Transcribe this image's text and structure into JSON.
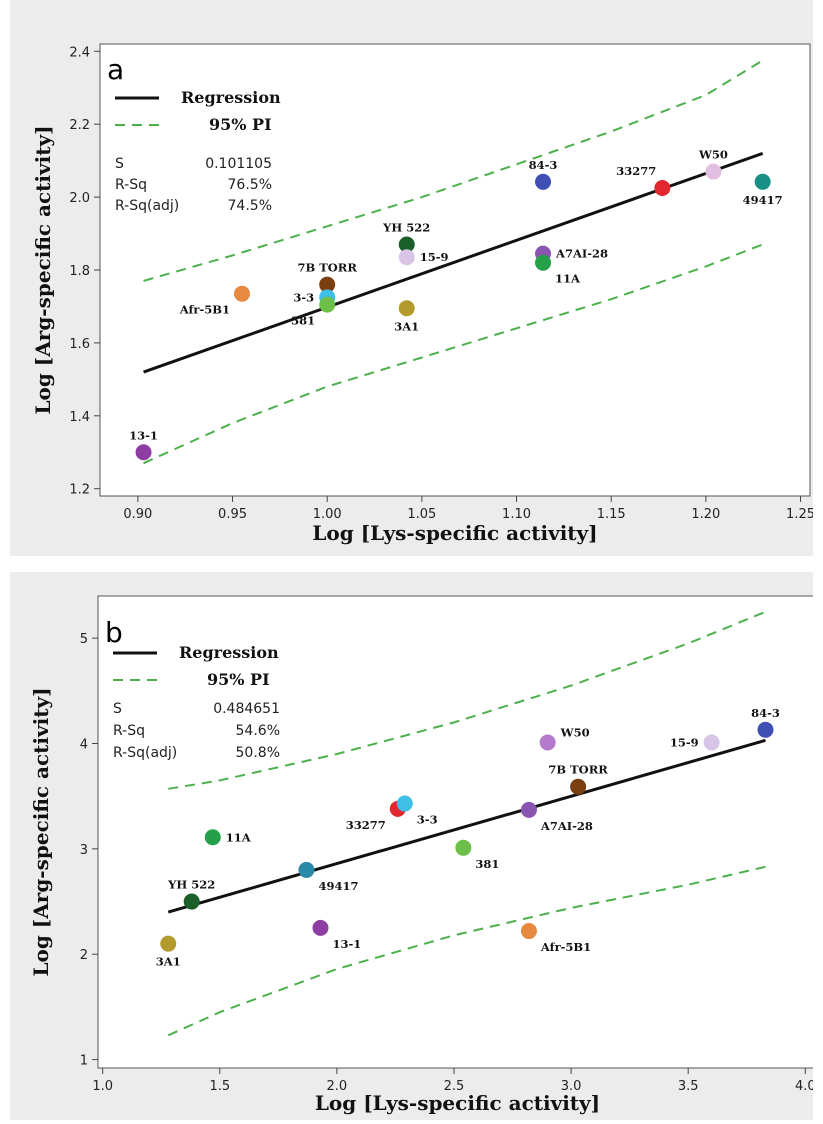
{
  "chart_data": [
    {
      "panel_label": "a",
      "type": "scatter",
      "xlabel": "Log [Lys-specific activity]",
      "ylabel": "Log [Arg-specific activity]",
      "xlim": [
        0.88,
        1.255
      ],
      "ylim": [
        1.18,
        2.42
      ],
      "x_ticks": [
        "0.90",
        "0.95",
        "1.00",
        "1.05",
        "1.10",
        "1.15",
        "1.20",
        "1.25"
      ],
      "y_ticks": [
        "1.2",
        "1.4",
        "1.6",
        "1.8",
        "2.0",
        "2.2",
        "2.4"
      ],
      "legend": {
        "regression_label": "Regression",
        "pi_label": "95% PI",
        "stats": [
          {
            "name": "S",
            "value": "0.101105"
          },
          {
            "name": "R-Sq",
            "value": "76.5%"
          },
          {
            "name": "R-Sq(adj)",
            "value": "74.5%"
          }
        ]
      },
      "regression_line": {
        "x": [
          0.903,
          1.23
        ],
        "y": [
          1.52,
          2.12
        ]
      },
      "pi_upper": {
        "x": [
          0.903,
          0.95,
          1.0,
          1.05,
          1.1,
          1.15,
          1.2,
          1.23
        ],
        "y": [
          1.77,
          1.84,
          1.92,
          2.0,
          2.09,
          2.18,
          2.28,
          2.375
        ]
      },
      "pi_lower": {
        "x": [
          0.903,
          0.95,
          1.0,
          1.05,
          1.1,
          1.15,
          1.2,
          1.23
        ],
        "y": [
          1.27,
          1.38,
          1.48,
          1.56,
          1.64,
          1.72,
          1.81,
          1.87
        ]
      },
      "points": [
        {
          "label": "13-1",
          "x": 0.903,
          "y": 1.3,
          "color": "#8e3ea3",
          "lpos": "above"
        },
        {
          "label": "Afr-5B1",
          "x": 0.955,
          "y": 1.735,
          "color": "#e88940",
          "lpos": "below-left"
        },
        {
          "label": "7B TORR",
          "x": 1.0,
          "y": 1.76,
          "color": "#7a3f10",
          "lpos": "above"
        },
        {
          "label": "3-3",
          "x": 1.0,
          "y": 1.725,
          "color": "#3fbfe8",
          "lpos": "left"
        },
        {
          "label": "381",
          "x": 1.0,
          "y": 1.705,
          "color": "#6cc04a",
          "lpos": "below-left"
        },
        {
          "label": "YH 522",
          "x": 1.042,
          "y": 1.87,
          "color": "#1a5e2a",
          "lpos": "above"
        },
        {
          "label": "15-9",
          "x": 1.042,
          "y": 1.835,
          "color": "#d8c4e6",
          "lpos": "right"
        },
        {
          "label": "3A1",
          "x": 1.042,
          "y": 1.695,
          "color": "#b39a2c",
          "lpos": "below"
        },
        {
          "label": "84-3",
          "x": 1.114,
          "y": 2.042,
          "color": "#3f4fb3",
          "lpos": "above"
        },
        {
          "label": "A7AI-28",
          "x": 1.114,
          "y": 1.845,
          "color": "#8a55b0",
          "lpos": "right"
        },
        {
          "label": "11A",
          "x": 1.114,
          "y": 1.82,
          "color": "#24a048",
          "lpos": "below-right"
        },
        {
          "label": "33277",
          "x": 1.177,
          "y": 2.025,
          "color": "#e0282e",
          "lpos": "above-left"
        },
        {
          "label": "W50",
          "x": 1.204,
          "y": 2.07,
          "color": "#e2bfe0",
          "lpos": "above"
        },
        {
          "label": "49417",
          "x": 1.23,
          "y": 2.042,
          "color": "#1a8f86",
          "lpos": "below"
        }
      ]
    },
    {
      "panel_label": "b",
      "type": "scatter",
      "xlabel": "Log [Lys-specific activity]",
      "ylabel": "Log [Arg-specific activity]",
      "xlim": [
        0.98,
        4.05
      ],
      "ylim": [
        0.92,
        5.4
      ],
      "x_ticks": [
        "1.0",
        "1.5",
        "2.0",
        "2.5",
        "3.0",
        "3.5",
        "4.0"
      ],
      "y_ticks": [
        "1",
        "2",
        "3",
        "4",
        "5"
      ],
      "legend": {
        "regression_label": "Regression",
        "pi_label": "95% PI",
        "stats": [
          {
            "name": "S",
            "value": "0.484651"
          },
          {
            "name": "R-Sq",
            "value": "54.6%"
          },
          {
            "name": "R-Sq(adj)",
            "value": "50.8%"
          }
        ]
      },
      "regression_line": {
        "x": [
          1.28,
          3.83
        ],
        "y": [
          2.4,
          4.03
        ]
      },
      "pi_upper": {
        "x": [
          1.28,
          1.5,
          2.0,
          2.5,
          3.0,
          3.5,
          3.83
        ],
        "y": [
          3.57,
          3.65,
          3.9,
          4.2,
          4.55,
          4.95,
          5.25
        ]
      },
      "pi_lower": {
        "x": [
          1.28,
          1.5,
          2.0,
          2.5,
          3.0,
          3.5,
          3.83
        ],
        "y": [
          1.23,
          1.45,
          1.86,
          2.18,
          2.44,
          2.66,
          2.83
        ]
      },
      "points": [
        {
          "label": "3A1",
          "x": 1.28,
          "y": 2.1,
          "color": "#b39a2c",
          "lpos": "below"
        },
        {
          "label": "YH 522",
          "x": 1.38,
          "y": 2.5,
          "color": "#1a5e2a",
          "lpos": "above"
        },
        {
          "label": "11A",
          "x": 1.47,
          "y": 3.11,
          "color": "#24a048",
          "lpos": "right"
        },
        {
          "label": "49417",
          "x": 1.87,
          "y": 2.8,
          "color": "#2a8aa8",
          "lpos": "below-right"
        },
        {
          "label": "13-1",
          "x": 1.93,
          "y": 2.25,
          "color": "#8e3ea3",
          "lpos": "below-right"
        },
        {
          "label": "33277",
          "x": 2.26,
          "y": 3.38,
          "color": "#e0282e",
          "lpos": "below-left"
        },
        {
          "label": "3-3",
          "x": 2.29,
          "y": 3.43,
          "color": "#3fbfe8",
          "lpos": "below-right"
        },
        {
          "label": "381",
          "x": 2.54,
          "y": 3.01,
          "color": "#6cc04a",
          "lpos": "below-right"
        },
        {
          "label": "A7AI-28",
          "x": 2.82,
          "y": 3.37,
          "color": "#8a55b0",
          "lpos": "below-right"
        },
        {
          "label": "Afr-5B1",
          "x": 2.82,
          "y": 2.22,
          "color": "#e88940",
          "lpos": "below-right"
        },
        {
          "label": "W50",
          "x": 2.9,
          "y": 4.01,
          "color": "#b57acc",
          "lpos": "above-right"
        },
        {
          "label": "7B TORR",
          "x": 3.03,
          "y": 3.59,
          "color": "#7a3f10",
          "lpos": "above"
        },
        {
          "label": "15-9",
          "x": 3.6,
          "y": 4.01,
          "color": "#d8c4e6",
          "lpos": "left"
        },
        {
          "label": "84-3",
          "x": 3.83,
          "y": 4.13,
          "color": "#3f4fb3",
          "lpos": "above"
        }
      ]
    }
  ]
}
